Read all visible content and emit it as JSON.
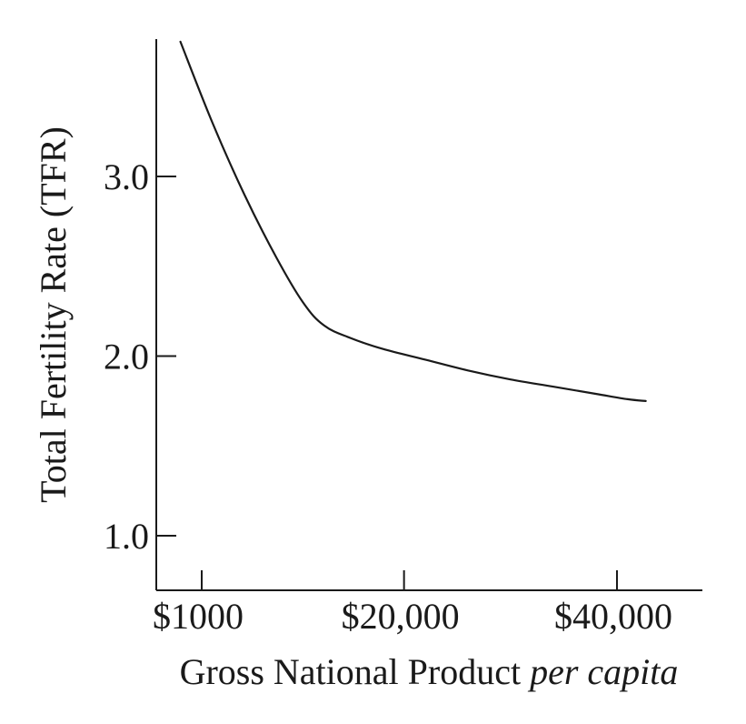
{
  "chart_data": {
    "type": "line",
    "title": "",
    "xlabel": "Gross National Product",
    "xlabel_italic": "per capita",
    "ylabel": "Total Fertility Rate (TFR)",
    "x_ticks": [
      {
        "value": 1000,
        "label": "$1000"
      },
      {
        "value": 20000,
        "label": "$20,000"
      },
      {
        "value": 40000,
        "label": "$40,000"
      }
    ],
    "y_ticks": [
      {
        "value": 1.0,
        "label": "1.0"
      },
      {
        "value": 2.0,
        "label": "2.0"
      },
      {
        "value": 3.0,
        "label": "3.0"
      }
    ],
    "xlim": [
      -3000,
      48000
    ],
    "ylim": [
      0.7,
      3.75
    ],
    "grid": false,
    "legend": "none",
    "series": [
      {
        "color": "#1a1a1a",
        "x": [
          -1000,
          2000,
          5000,
          8000,
          10500,
          12500,
          15000,
          18000,
          22000,
          26000,
          30000,
          34000,
          38000,
          41000,
          42700
        ],
        "y": [
          3.75,
          3.3,
          2.9,
          2.55,
          2.3,
          2.17,
          2.1,
          2.04,
          1.98,
          1.92,
          1.87,
          1.83,
          1.79,
          1.76,
          1.75
        ]
      }
    ]
  }
}
